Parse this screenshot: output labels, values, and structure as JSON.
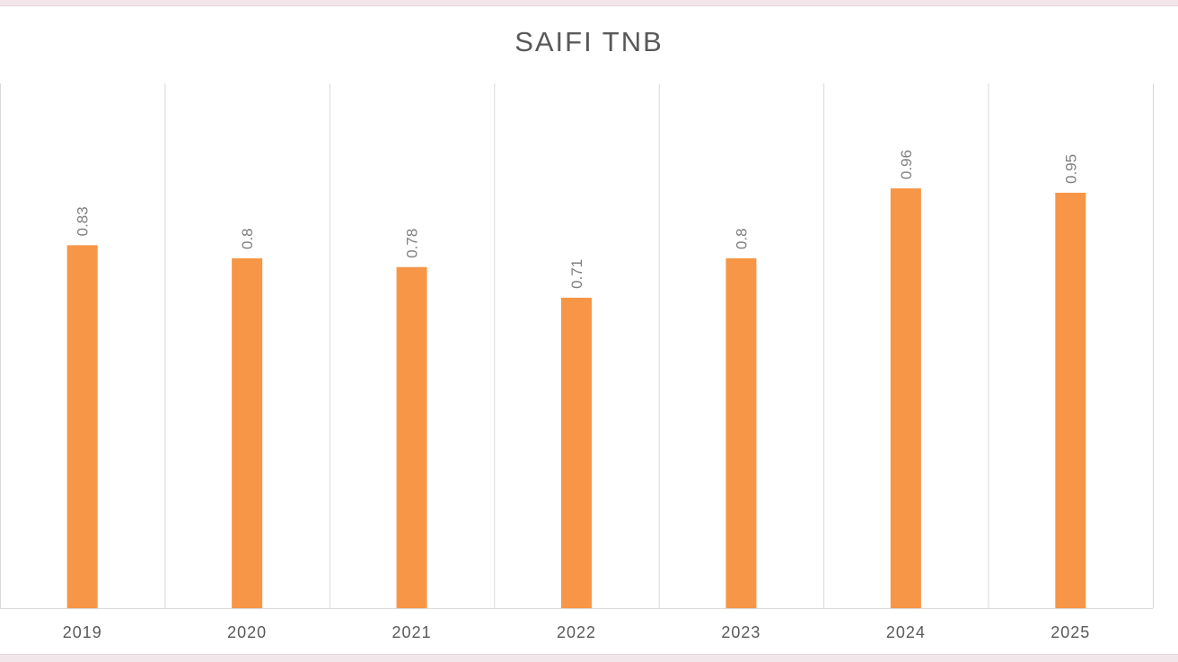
{
  "chart_data": {
    "type": "bar",
    "title": "SAIFI TNB",
    "categories": [
      "2019",
      "2020",
      "2021",
      "2022",
      "2023",
      "2024",
      "2025"
    ],
    "series": [
      {
        "values": [
          0.83,
          0.8,
          0.78,
          0.71,
          0.8,
          0.96,
          0.95
        ],
        "color": "#f79646"
      }
    ],
    "data_labels": [
      "0.83",
      "0.8",
      "0.78",
      "0.71",
      "0.8",
      "0.96",
      "0.95"
    ],
    "ylim": [
      0,
      1.2
    ],
    "grid": "vertical",
    "xlabel": "",
    "ylabel": ""
  }
}
